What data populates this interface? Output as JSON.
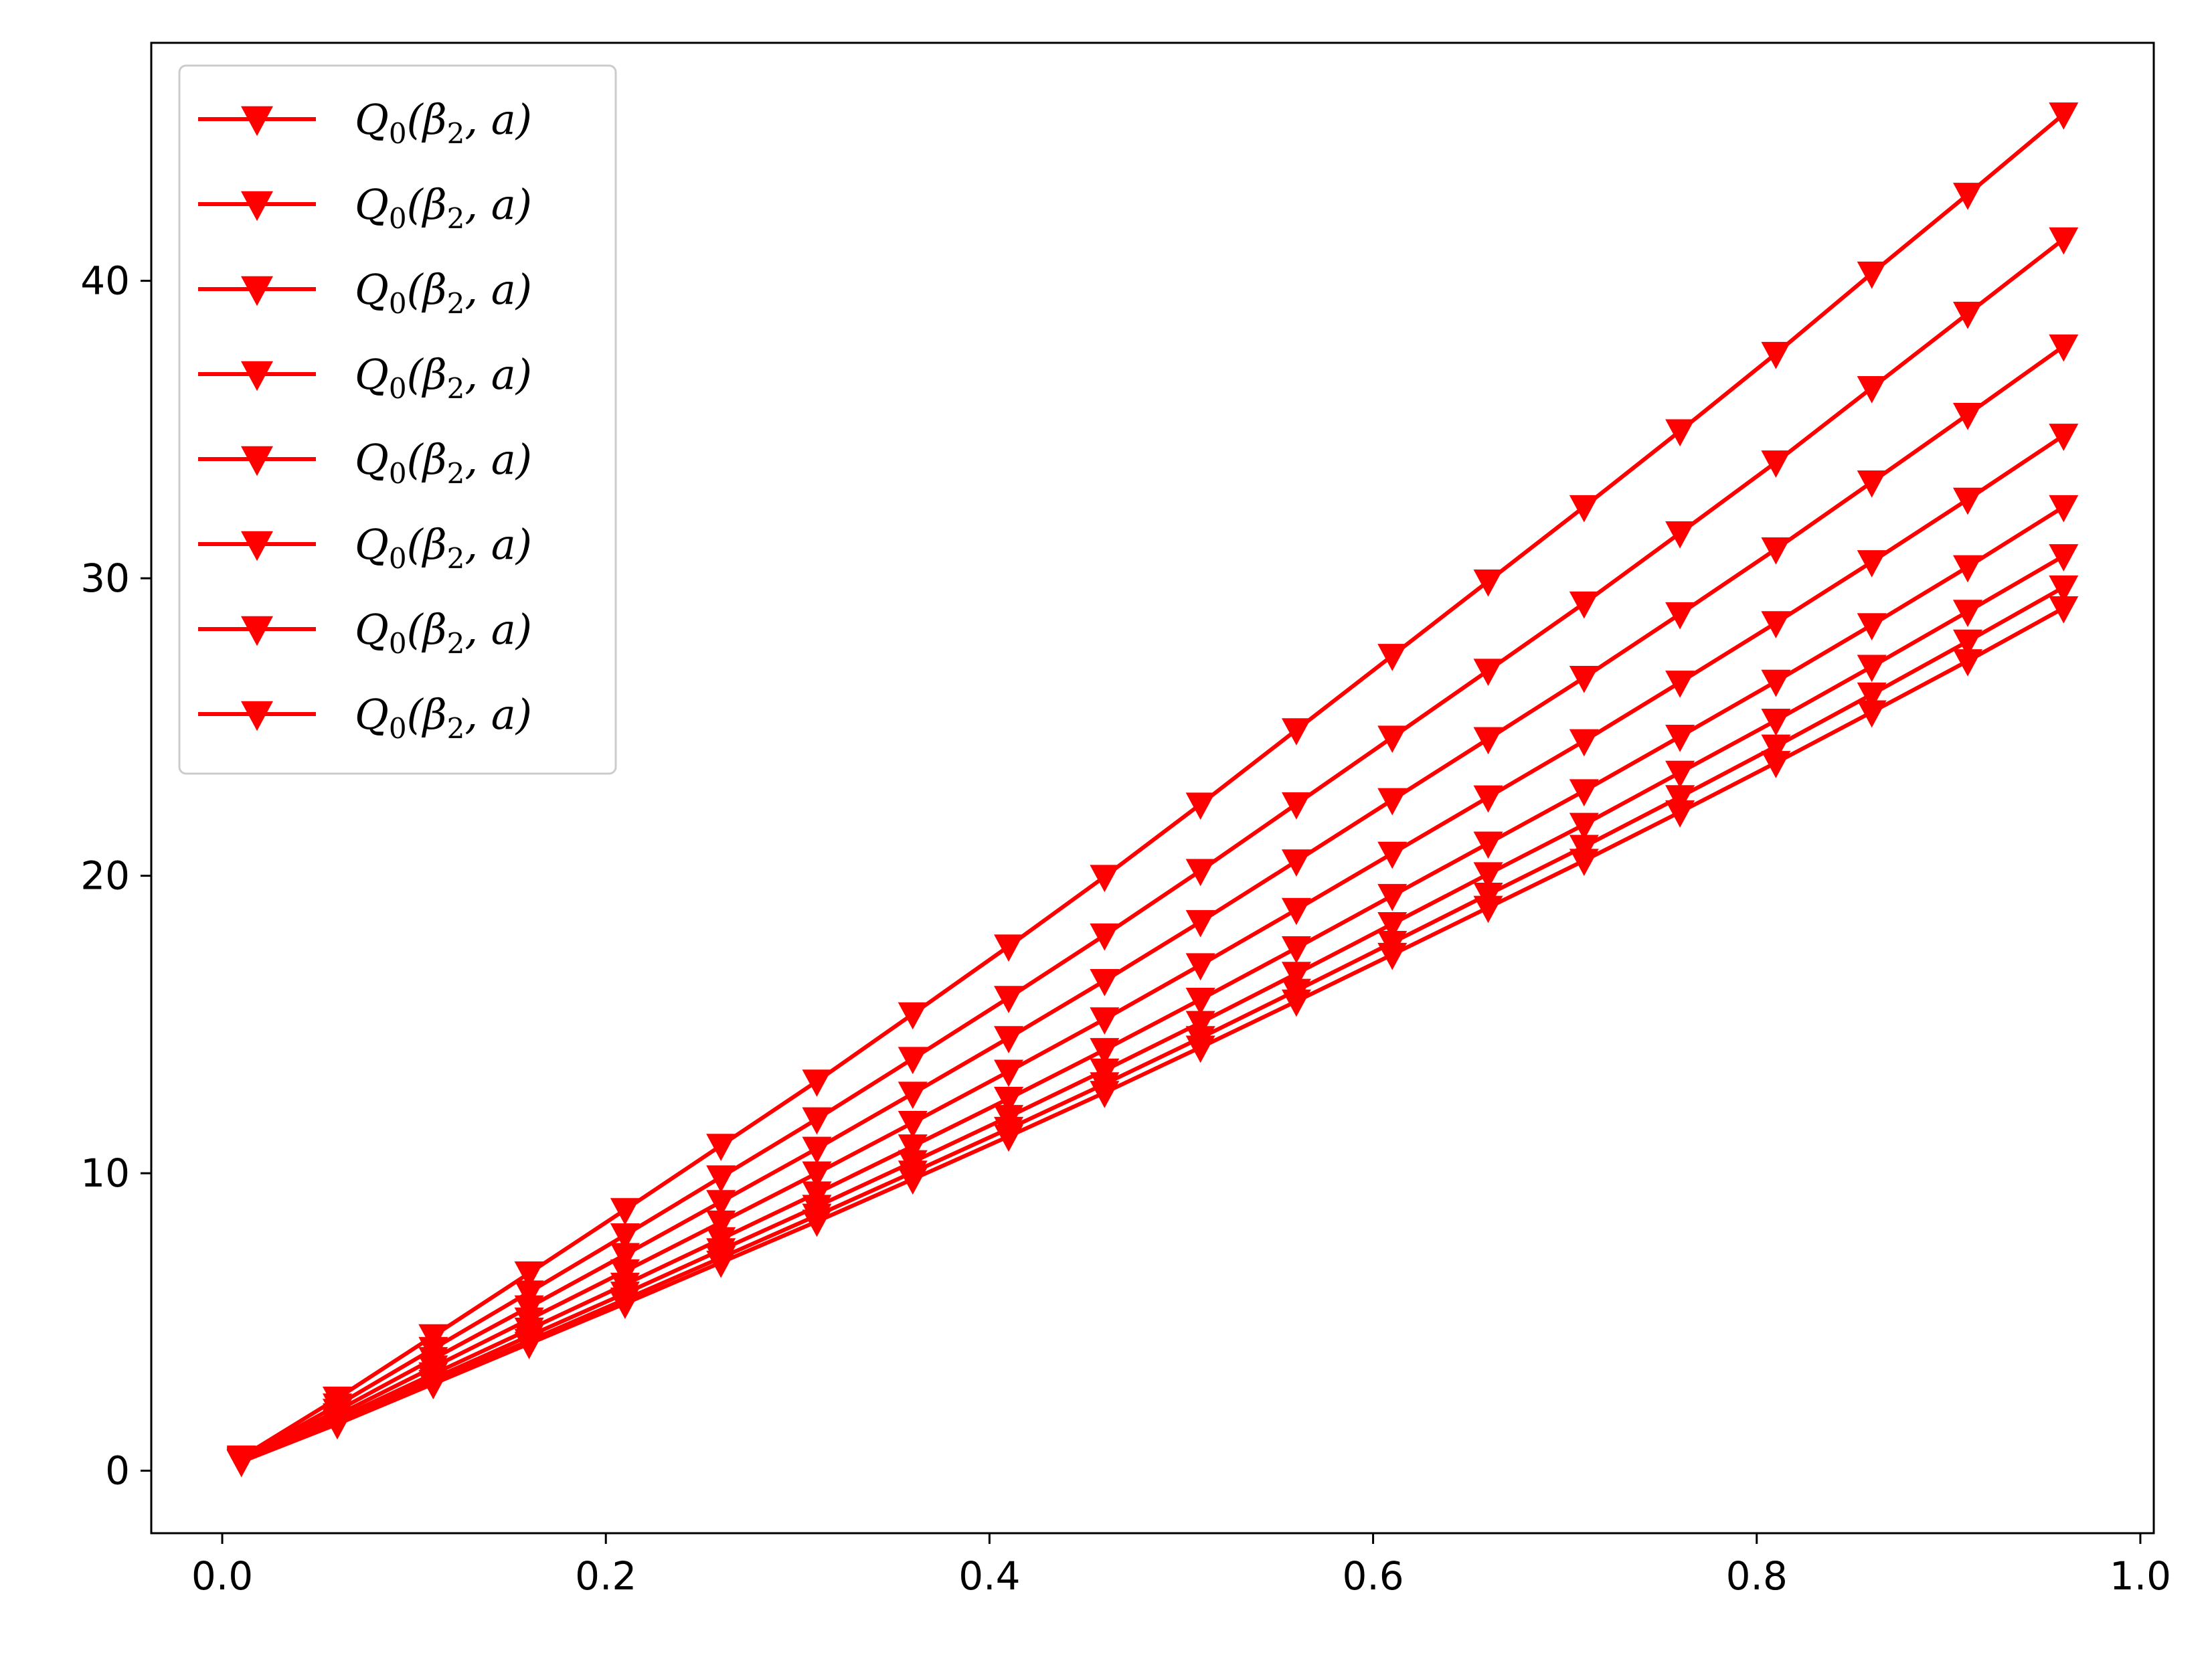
{
  "chart_data": {
    "type": "line",
    "title": "",
    "xlabel": "",
    "ylabel": "",
    "xlim": [
      -0.037,
      1.007
    ],
    "ylim": [
      -2.1,
      48.0
    ],
    "x_ticks": [
      {
        "value": 0.0,
        "label": "0.0"
      },
      {
        "value": 0.2,
        "label": "0.2"
      },
      {
        "value": 0.4,
        "label": "0.4"
      },
      {
        "value": 0.6,
        "label": "0.6"
      },
      {
        "value": 0.8,
        "label": "0.8"
      },
      {
        "value": 1.0,
        "label": "1.0"
      }
    ],
    "y_ticks": [
      {
        "value": 0,
        "label": "0"
      },
      {
        "value": 10,
        "label": "10"
      },
      {
        "value": 20,
        "label": "20"
      },
      {
        "value": 30,
        "label": "30"
      },
      {
        "value": 40,
        "label": "40"
      }
    ],
    "grid": false,
    "legend_position": "top-left",
    "marker": "triangle-down",
    "x": [
      0.01,
      0.06,
      0.11,
      0.16,
      0.21,
      0.26,
      0.31,
      0.36,
      0.41,
      0.46,
      0.51,
      0.56,
      0.61,
      0.66,
      0.71,
      0.76,
      0.81,
      0.86,
      0.91,
      0.96
    ],
    "series": [
      {
        "name": "Q_0(β_2, a)",
        "color": "#ff0000",
        "values": [
          0.45,
          2.43,
          4.53,
          6.64,
          8.77,
          10.93,
          13.09,
          15.35,
          17.63,
          19.97,
          22.4,
          24.9,
          27.4,
          29.9,
          32.4,
          34.95,
          37.55,
          40.25,
          42.9,
          45.6
        ]
      },
      {
        "name": "Q_0(β_2, a)",
        "color": "#ff0000",
        "values": [
          0.41,
          2.2,
          4.1,
          6.0,
          7.92,
          9.87,
          11.82,
          13.85,
          15.9,
          18.0,
          20.17,
          22.41,
          24.65,
          26.9,
          29.16,
          31.52,
          33.9,
          36.4,
          38.9,
          41.4
        ]
      },
      {
        "name": "Q_0(β_2, a)",
        "color": "#ff0000",
        "values": [
          0.38,
          2.02,
          3.76,
          5.5,
          7.26,
          9.04,
          10.83,
          12.68,
          14.55,
          16.47,
          18.45,
          20.49,
          22.55,
          24.6,
          26.66,
          28.8,
          30.98,
          33.23,
          35.5,
          37.8
        ]
      },
      {
        "name": "Q_0(β_2, a)",
        "color": "#ff0000",
        "values": [
          0.35,
          1.87,
          3.48,
          5.09,
          6.71,
          8.35,
          10.0,
          11.7,
          13.42,
          15.18,
          17.0,
          18.86,
          20.75,
          22.64,
          24.53,
          26.5,
          28.5,
          30.55,
          32.65,
          34.8
        ]
      },
      {
        "name": "Q_0(β_2, a)",
        "color": "#ff0000",
        "values": [
          0.33,
          1.75,
          3.25,
          4.75,
          6.26,
          7.79,
          9.33,
          10.91,
          12.51,
          14.15,
          15.84,
          17.57,
          19.33,
          21.09,
          22.85,
          24.68,
          26.53,
          28.43,
          30.38,
          32.4
        ]
      },
      {
        "name": "Q_0(β_2, a)",
        "color": "#ff0000",
        "values": [
          0.32,
          1.67,
          3.1,
          4.53,
          5.96,
          7.42,
          8.88,
          10.38,
          11.9,
          13.46,
          15.06,
          16.71,
          18.38,
          20.06,
          21.72,
          23.47,
          25.22,
          27.03,
          28.88,
          30.75
        ]
      },
      {
        "name": "Q_0(β_2, a)",
        "color": "#ff0000",
        "values": [
          0.31,
          1.61,
          2.99,
          4.37,
          5.76,
          7.16,
          8.58,
          10.03,
          11.5,
          13.0,
          14.55,
          16.14,
          17.75,
          19.37,
          20.98,
          22.65,
          24.35,
          26.1,
          27.88,
          29.7
        ]
      },
      {
        "name": "Q_0(β_2, a)",
        "color": "#ff0000",
        "values": [
          0.3,
          1.57,
          2.92,
          4.27,
          5.62,
          7.0,
          8.38,
          9.8,
          11.24,
          12.71,
          14.23,
          15.78,
          17.35,
          18.93,
          20.51,
          22.14,
          23.8,
          25.5,
          27.22,
          29.0
        ]
      }
    ],
    "legend_entries": [
      {
        "base": "Q",
        "sub": "0",
        "mid": "(β",
        "sub2": "2",
        "tail": ", a)"
      },
      {
        "base": "Q",
        "sub": "0",
        "mid": "(β",
        "sub2": "2",
        "tail": ", a)"
      },
      {
        "base": "Q",
        "sub": "0",
        "mid": "(β",
        "sub2": "2",
        "tail": ", a)"
      },
      {
        "base": "Q",
        "sub": "0",
        "mid": "(β",
        "sub2": "2",
        "tail": ", a)"
      },
      {
        "base": "Q",
        "sub": "0",
        "mid": "(β",
        "sub2": "2",
        "tail": ", a)"
      },
      {
        "base": "Q",
        "sub": "0",
        "mid": "(β",
        "sub2": "2",
        "tail": ", a)"
      },
      {
        "base": "Q",
        "sub": "0",
        "mid": "(β",
        "sub2": "2",
        "tail": ", a)"
      },
      {
        "base": "Q",
        "sub": "0",
        "mid": "(β",
        "sub2": "2",
        "tail": ", a)"
      }
    ]
  }
}
